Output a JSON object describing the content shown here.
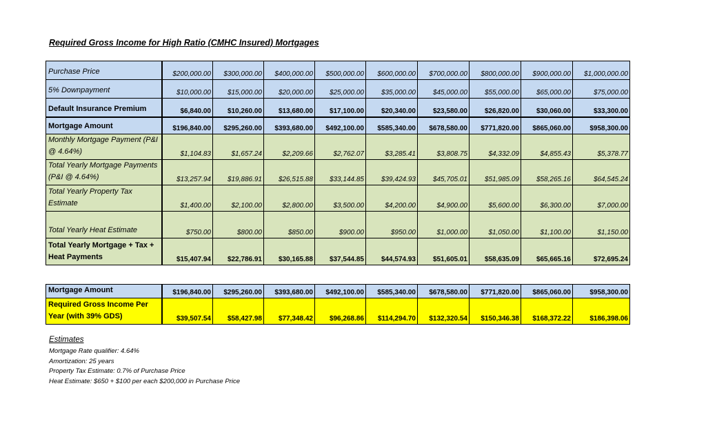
{
  "title": "Required Gross Income for High Ratio (CMHC Insured) Mortgages",
  "table_main": {
    "rows": [
      {
        "label": "Purchase Price",
        "values": [
          "$200,000.00",
          "$300,000.00",
          "$400,000.00",
          "$500,000.00",
          "$600,000.00",
          "$700,000.00",
          "$800,000.00",
          "$900,000.00",
          "$1,000,000.00"
        ]
      },
      {
        "label": "5% Downpayment",
        "values": [
          "$10,000.00",
          "$15,000.00",
          "$20,000.00",
          "$25,000.00",
          "$35,000.00",
          "$45,000.00",
          "$55,000.00",
          "$65,000.00",
          "$75,000.00"
        ]
      },
      {
        "label": "Default Insurance Premium",
        "values": [
          "$6,840.00",
          "$10,260.00",
          "$13,680.00",
          "$17,100.00",
          "$20,340.00",
          "$23,580.00",
          "$26,820.00",
          "$30,060.00",
          "$33,300.00"
        ]
      },
      {
        "label": "Mortgage Amount",
        "values": [
          "$196,840.00",
          "$295,260.00",
          "$393,680.00",
          "$492,100.00",
          "$585,340.00",
          "$678,580.00",
          "$771,820.00",
          "$865,060.00",
          "$958,300.00"
        ]
      },
      {
        "label": "Monthly Mortgage Payment (P&I @ 4.64%)",
        "values": [
          "$1,104.83",
          "$1,657.24",
          "$2,209.66",
          "$2,762.07",
          "$3,285.41",
          "$3,808.75",
          "$4,332.09",
          "$4,855.43",
          "$5,378.77"
        ]
      },
      {
        "label": "Total Yearly Mortgage Payments (P&I @ 4.64%)",
        "values": [
          "$13,257.94",
          "$19,886.91",
          "$26,515.88",
          "$33,144.85",
          "$39,424.93",
          "$45,705.01",
          "$51,985.09",
          "$58,265.16",
          "$64,545.24"
        ]
      },
      {
        "label": "Total Yearly Property Tax Estimate",
        "values": [
          "$1,400.00",
          "$2,100.00",
          "$2,800.00",
          "$3,500.00",
          "$4,200.00",
          "$4,900.00",
          "$5,600.00",
          "$6,300.00",
          "$7,000.00"
        ]
      },
      {
        "label": "Total Yearly Heat Estimate",
        "values": [
          "$750.00",
          "$800.00",
          "$850.00",
          "$900.00",
          "$950.00",
          "$1,000.00",
          "$1,050.00",
          "$1,100.00",
          "$1,150.00"
        ]
      },
      {
        "label": "Total Yearly Mortgage + Tax + Heat Payments",
        "values": [
          "$15,407.94",
          "$22,786.91",
          "$30,165.88",
          "$37,544.85",
          "$44,574.93",
          "$51,605.01",
          "$58,635.09",
          "$65,665.16",
          "$72,695.24"
        ]
      }
    ]
  },
  "table_summary": {
    "rows": [
      {
        "label": "Mortgage Amount",
        "values": [
          "$196,840.00",
          "$295,260.00",
          "$393,680.00",
          "$492,100.00",
          "$585,340.00",
          "$678,580.00",
          "$771,820.00",
          "$865,060.00",
          "$958,300.00"
        ]
      },
      {
        "label": "Required Gross Income Per Year (with 39% GDS)",
        "values": [
          "$39,507.54",
          "$58,427.98",
          "$77,348.42",
          "$96,268.86",
          "$114,294.70",
          "$132,320.54",
          "$150,346.38",
          "$168,372.22",
          "$186,398.06"
        ]
      }
    ]
  },
  "estimates": {
    "heading": "Estimates",
    "lines": [
      "Mortgage Rate qualifier: 4.64%",
      "Amortization: 25 years",
      "Property Tax Estimate: 0.7% of Purchase Price",
      "Heat Estimate: $650 + $100 per each $200,000 in Purchase Price"
    ]
  },
  "colors": {
    "blue_fill": "#c5d9f1",
    "green_fill": "#d8e4bc",
    "yellow_fill": "#ffff00"
  }
}
